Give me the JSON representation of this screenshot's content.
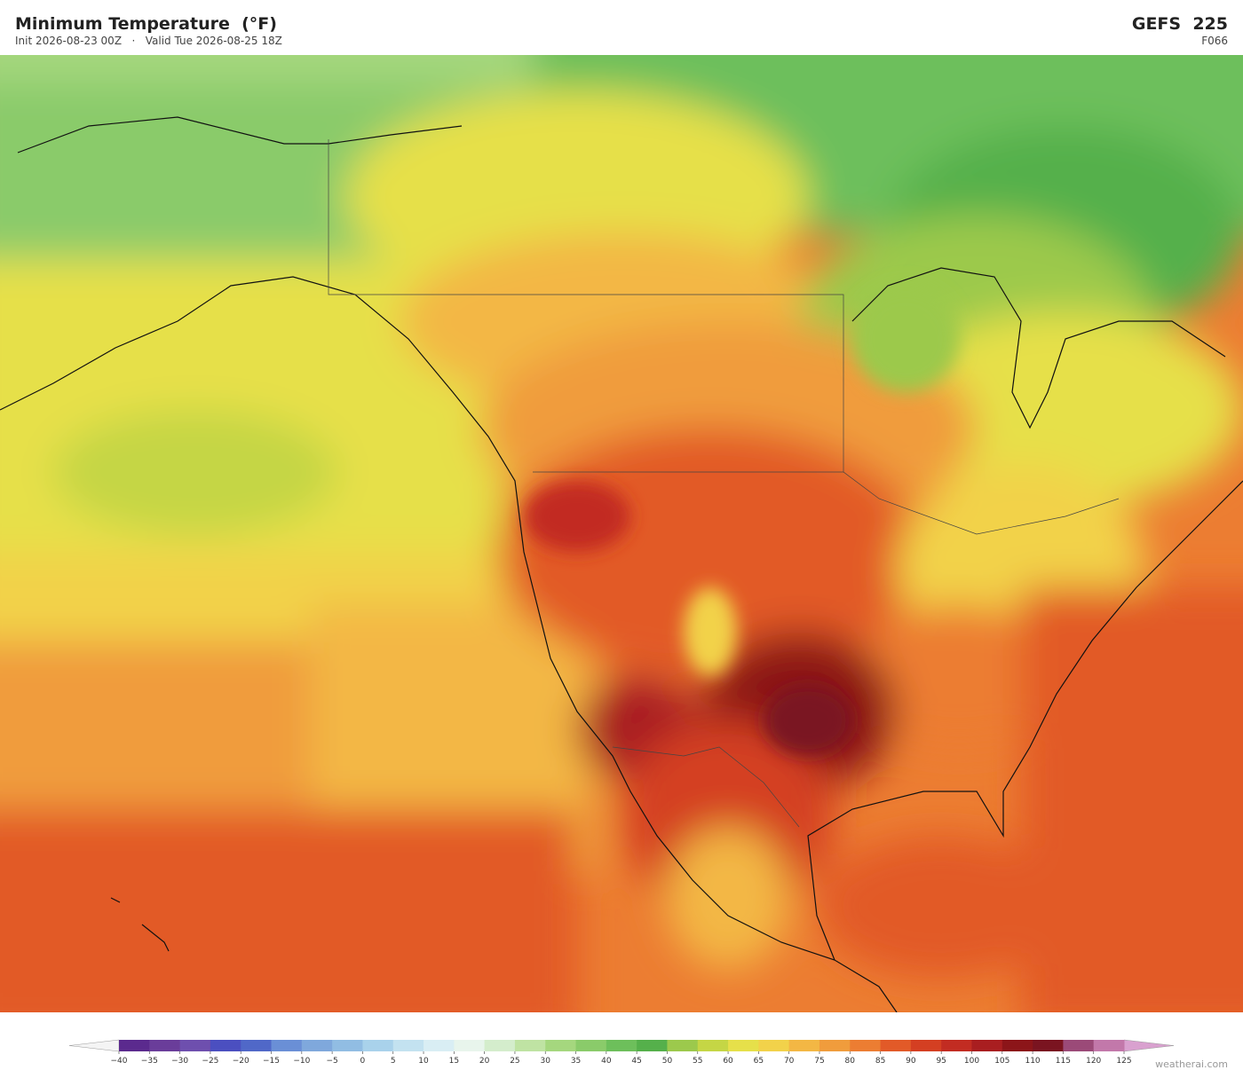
{
  "header": {
    "title": "Minimum Temperature  (°F)",
    "subtitle": "Init 2026-08-23 00Z   ·   Valid Tue 2026-08-25 18Z",
    "model": "GEFS  225",
    "forecast_hour": "F066"
  },
  "colorbar": {
    "ticks": [
      {
        "value": -40,
        "label": "−40"
      },
      {
        "value": -35,
        "label": "−35"
      },
      {
        "value": -30,
        "label": "−30"
      },
      {
        "value": -25,
        "label": "−25"
      },
      {
        "value": -20,
        "label": "−20"
      },
      {
        "value": -15,
        "label": "−15"
      },
      {
        "value": -10,
        "label": "−10"
      },
      {
        "value": -5,
        "label": "−5"
      },
      0,
      5,
      10,
      15,
      20,
      25,
      30,
      35,
      40,
      45,
      50,
      55,
      60,
      65,
      70,
      75,
      80,
      85,
      90,
      95,
      100,
      105,
      110,
      115,
      120,
      125
    ],
    "colors": [
      "#5b2a8e",
      "#6a3d9a",
      "#6e4fae",
      "#4b4fc0",
      "#5068c8",
      "#6a8fd6",
      "#7fa8dc",
      "#91bde3",
      "#a9d2eb",
      "#c3e2f0",
      "#d9eef4",
      "#e8f5ec",
      "#d4edcc",
      "#bfe3a3",
      "#a5d77e",
      "#8acb6a",
      "#6dbf5b",
      "#55b04b",
      "#9cc94c",
      "#c5d645",
      "#e6e04a",
      "#f2d24a",
      "#f3b744",
      "#f09c3c",
      "#ec7d32",
      "#e25a28",
      "#d43f22",
      "#c22c22",
      "#a91e20",
      "#8c1519",
      "#7a1420",
      "#9b4a78",
      "#c278aa"
    ],
    "under_color": "#f4f4f4",
    "over_color": "#d9a1cf"
  },
  "watermark": "weatherai.com"
}
